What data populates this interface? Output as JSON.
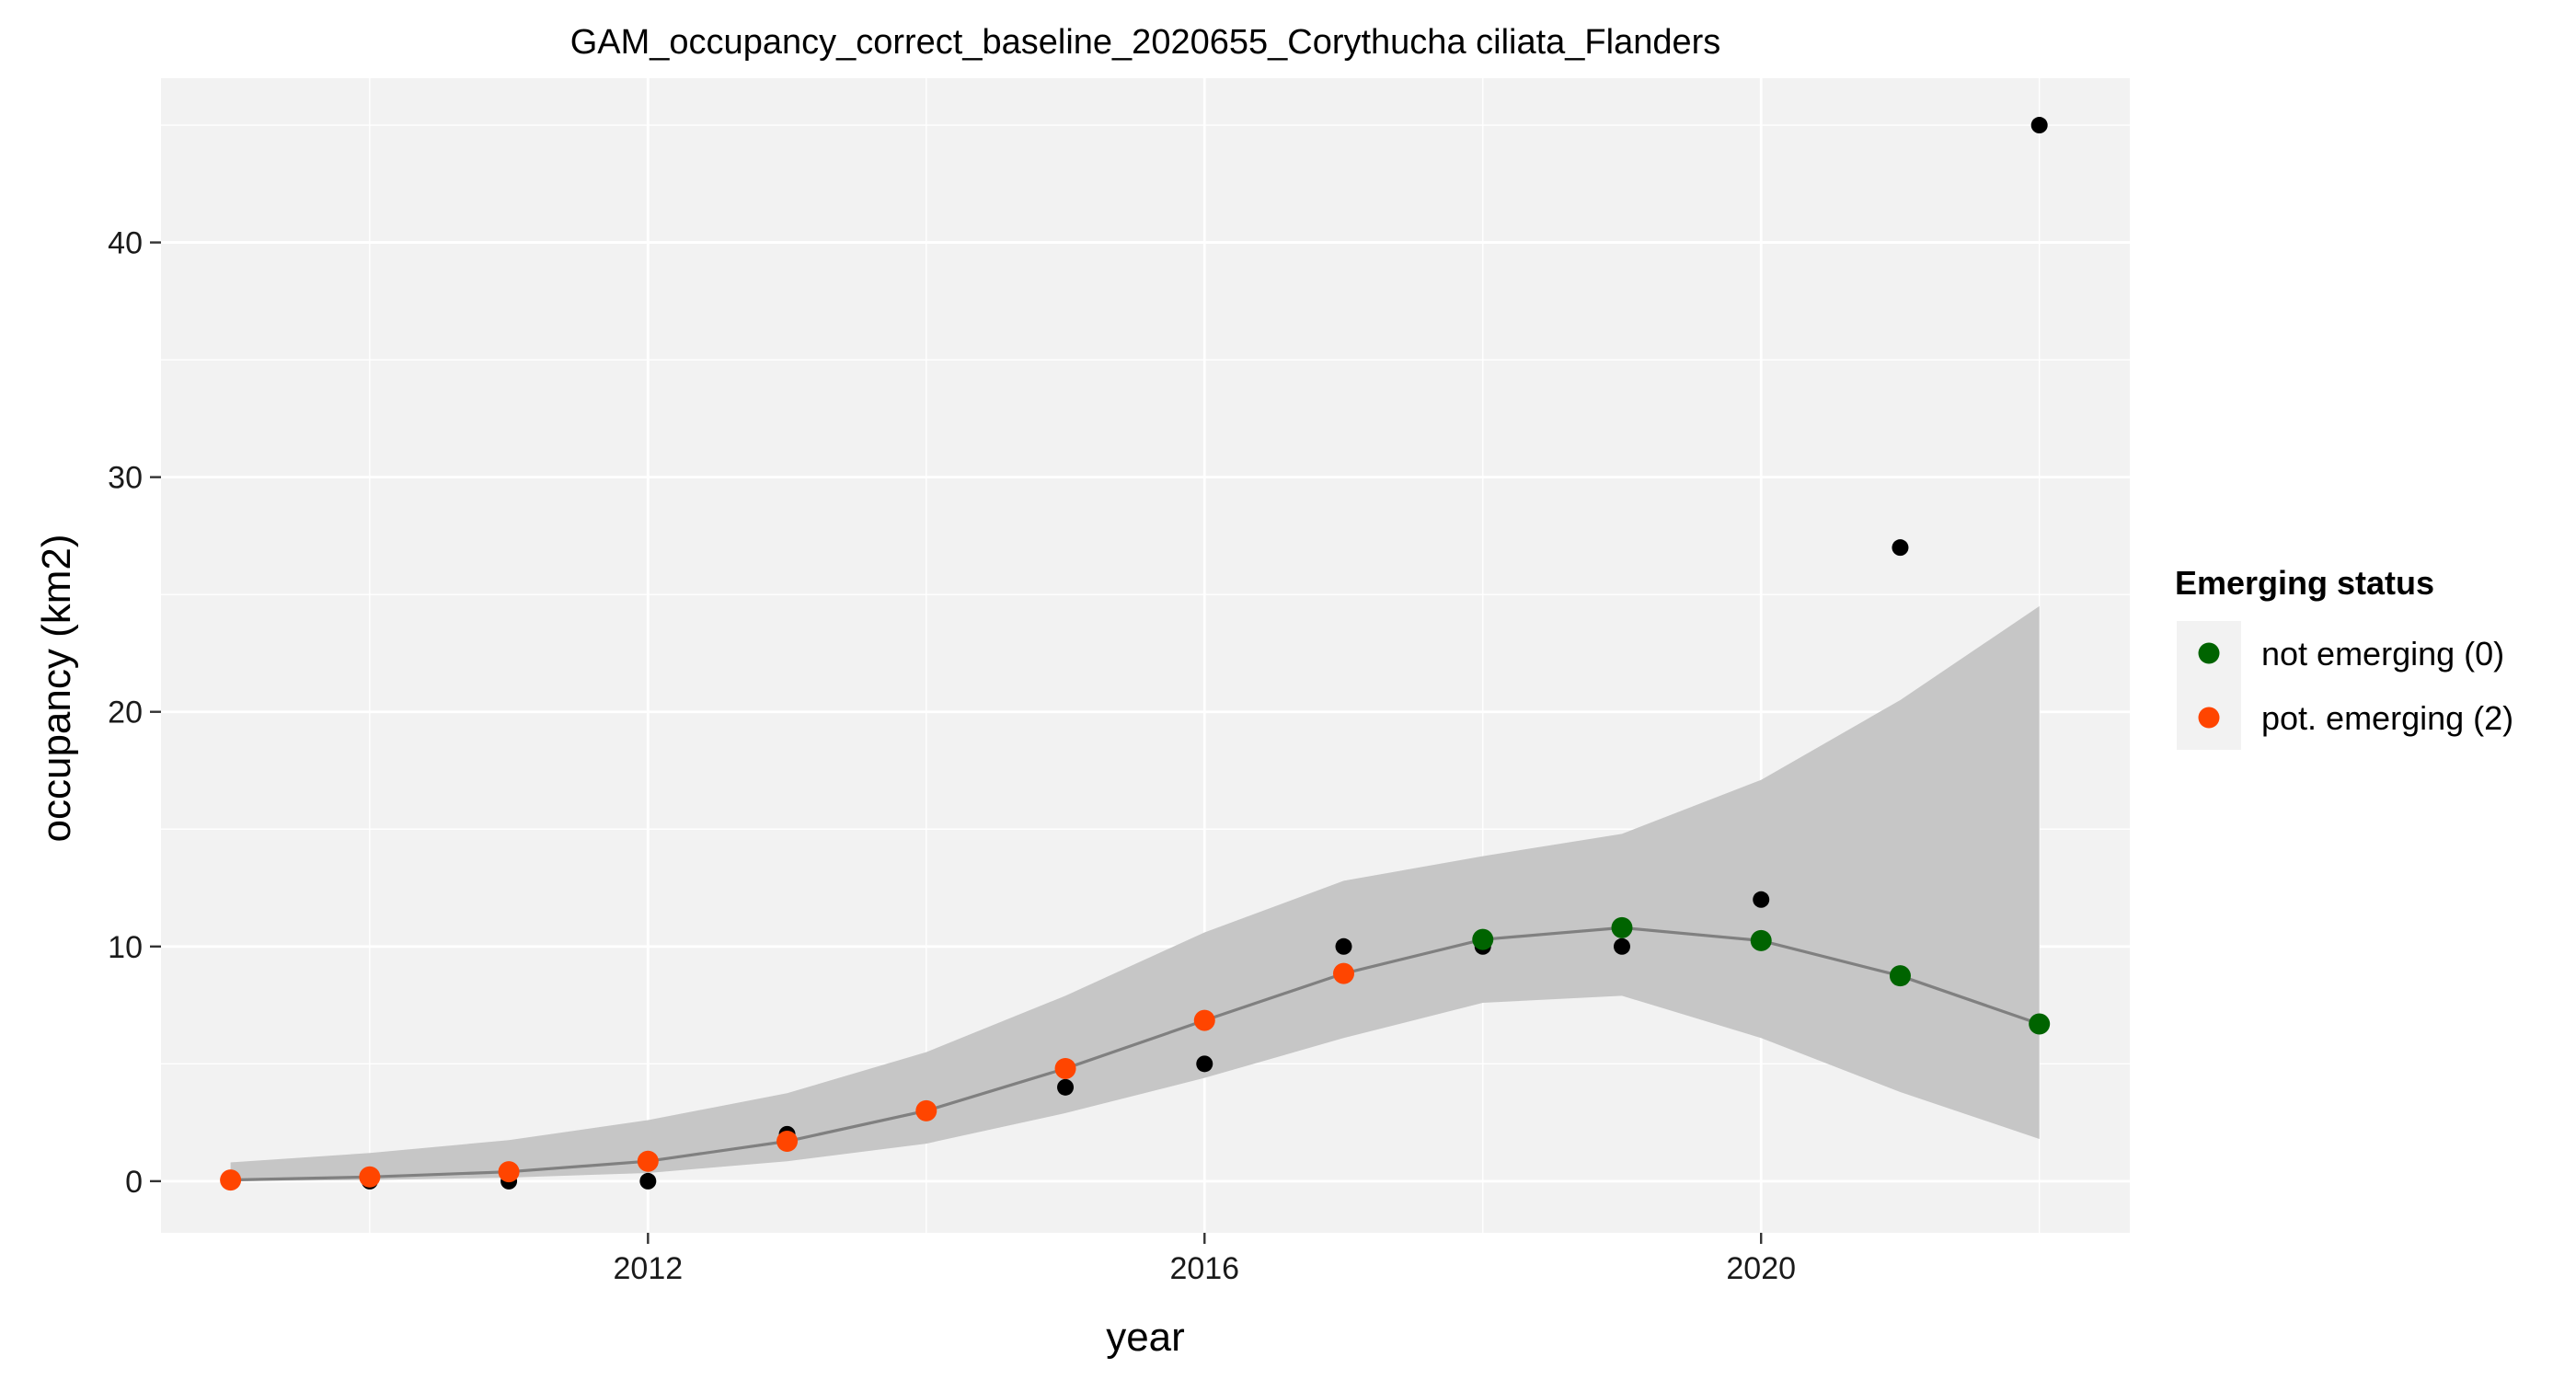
{
  "chart_data": {
    "type": "scatter",
    "title": "GAM_occupancy_correct_baseline_2020655_Corythucha ciliata_Flanders",
    "xlabel": "year",
    "ylabel": "occupancy (km2)",
    "xlim": [
      2008.5,
      2022.65
    ],
    "ylim": [
      -2.2,
      47.0
    ],
    "x_ticks": [
      2012,
      2016,
      2020
    ],
    "x_tick_labels": [
      "2012",
      "2016",
      "2020"
    ],
    "x_minor_ticks": [
      2010,
      2014,
      2018,
      2022
    ],
    "y_ticks": [
      0,
      10,
      20,
      30,
      40
    ],
    "y_tick_labels": [
      "0",
      "10",
      "20",
      "30",
      "40"
    ],
    "y_minor_ticks": [
      5,
      15,
      25,
      35,
      45
    ],
    "grid": true,
    "panel_background": "#f2f2f2",
    "observed": {
      "color": "#000000",
      "x": [
        2009,
        2010,
        2011,
        2012,
        2013,
        2014,
        2015,
        2016,
        2017,
        2018,
        2019,
        2020,
        2021,
        2022
      ],
      "y": [
        0,
        0,
        0,
        0,
        2,
        3,
        4,
        5,
        10,
        10,
        10,
        12,
        27,
        45
      ]
    },
    "fit": {
      "line_color": "#808080",
      "ribbon_color": "#c6c6c6",
      "x": [
        2009,
        2010,
        2011,
        2012,
        2013,
        2014,
        2015,
        2016,
        2017,
        2018,
        2019,
        2020,
        2021,
        2022
      ],
      "y": [
        0.05,
        0.18,
        0.4,
        0.85,
        1.7,
        3.0,
        4.8,
        6.85,
        8.85,
        10.3,
        10.8,
        10.25,
        8.75,
        6.7
      ],
      "lower": [
        0.0,
        0.05,
        0.15,
        0.35,
        0.85,
        1.6,
        2.9,
        4.4,
        6.1,
        7.6,
        7.9,
        6.1,
        3.8,
        1.8
      ],
      "upper": [
        0.8,
        1.2,
        1.75,
        2.6,
        3.75,
        5.5,
        7.9,
        10.6,
        12.8,
        13.85,
        14.8,
        17.1,
        20.5,
        24.5
      ],
      "status": [
        2,
        2,
        2,
        2,
        2,
        2,
        2,
        2,
        2,
        0,
        0,
        0,
        0,
        0
      ]
    },
    "legend": {
      "title": "Emerging status",
      "placement": "right",
      "entries": [
        {
          "label": "not emerging (0)",
          "color": "#006400"
        },
        {
          "label": "pot. emerging (2)",
          "color": "#ff4500"
        }
      ]
    },
    "status_colors": {
      "0": "#006400",
      "2": "#ff4500"
    }
  }
}
